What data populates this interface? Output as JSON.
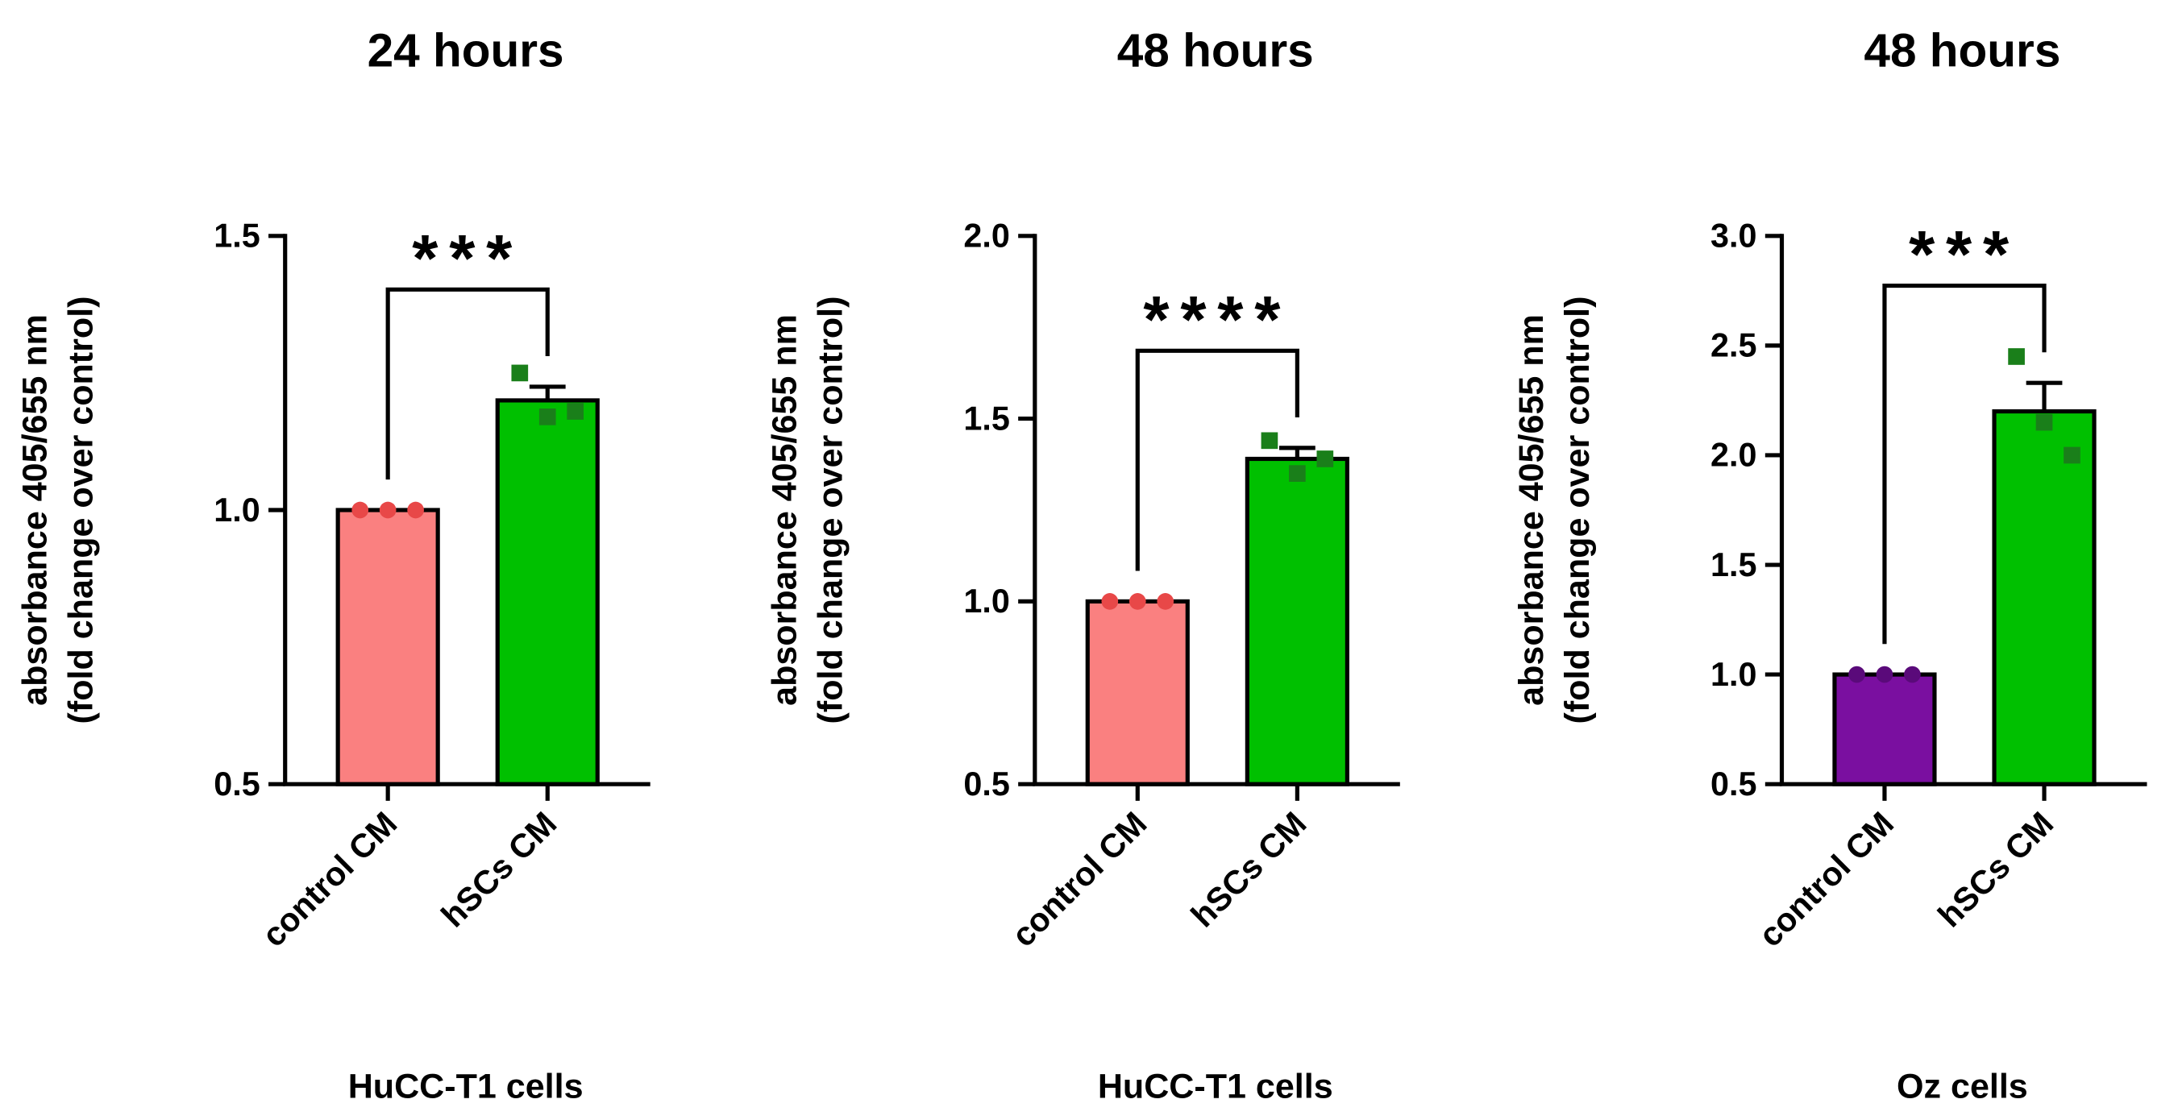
{
  "chart_data": [
    {
      "type": "bar",
      "title": "24 hours",
      "xlabel": "HuCC-T1 cells",
      "ylabel": [
        "absorbance 405/655 nm",
        "(fold change over control)"
      ],
      "categories": [
        "control CM",
        "hSCs CM"
      ],
      "values": [
        1.0,
        1.2
      ],
      "errors": [
        0,
        0.025
      ],
      "colors": [
        "#fa8080",
        "#00c000"
      ],
      "point_colors": [
        "#e84848",
        "#1a7f1a"
      ],
      "points": [
        [
          1.0,
          1.0,
          1.0
        ],
        [
          1.25,
          1.17,
          1.18
        ]
      ],
      "significance": "***",
      "ylim": [
        0.5,
        1.5
      ],
      "yticks": [
        {
          "value": 0.5,
          "label": "0.5"
        },
        {
          "value": 1,
          "label": "1.0"
        },
        1.5
      ]
    },
    {
      "type": "bar",
      "title": "48 hours",
      "xlabel": "HuCC-T1 cells",
      "ylabel": [
        "absorbance 405/655 nm",
        "(fold change over control)"
      ],
      "categories": [
        "control CM",
        "hSCs CM"
      ],
      "values": [
        1.0,
        1.39
      ],
      "errors": [
        0,
        0.03
      ],
      "colors": [
        "#fa8080",
        "#00c000"
      ],
      "point_colors": [
        "#e84848",
        "#1a7f1a"
      ],
      "points": [
        [
          1.0,
          1.0,
          1.0
        ],
        [
          1.44,
          1.35,
          1.39
        ]
      ],
      "significance": "****",
      "ylim": [
        0.5,
        2.0
      ],
      "yticks": [
        0.5,
        {
          "value": 1,
          "label": "1.0"
        },
        1.5,
        {
          "value": 2,
          "label": "2.0"
        }
      ]
    },
    {
      "type": "bar",
      "title": "48 hours",
      "xlabel": "Oz cells",
      "ylabel": [
        "absorbance 405/655 nm",
        "(fold change over control)"
      ],
      "categories": [
        "control CM",
        "hSCs CM"
      ],
      "values": [
        1.0,
        2.2
      ],
      "errors": [
        0,
        0.13
      ],
      "colors": [
        "#7a0fa0",
        "#00c000"
      ],
      "point_colors": [
        "#5a0a7a",
        "#1a7f1a"
      ],
      "points": [
        [
          1.0,
          1.0,
          1.0
        ],
        [
          2.45,
          2.15,
          2.0
        ]
      ],
      "significance": "***",
      "ylim": [
        0.5,
        3.0
      ],
      "yticks": [
        0.5,
        {
          "value": 1,
          "label": "1.0"
        },
        1.5,
        {
          "value": 2,
          "label": "2.0"
        },
        2.5,
        {
          "value": 3,
          "label": "3.0"
        }
      ]
    }
  ]
}
